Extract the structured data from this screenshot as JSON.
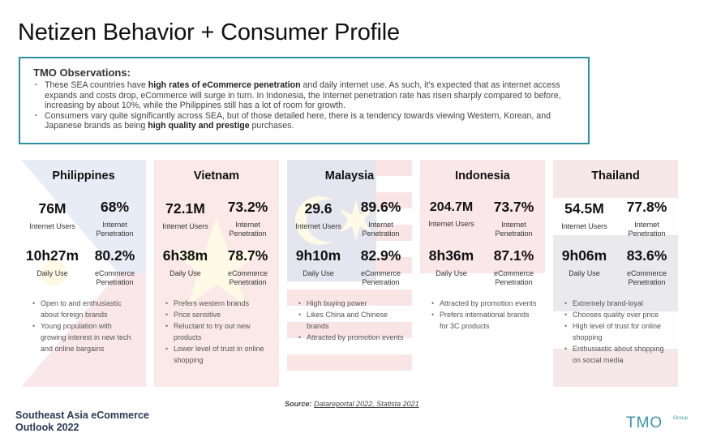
{
  "title": "Netizen Behavior + Consumer Profile",
  "observations": {
    "heading": "TMO Observations:",
    "items": [
      {
        "pre": "These SEA countries have ",
        "bold": "high rates of eCommerce penetration",
        "post": " and daily internet use. As such, it's expected that as internet access expands and costs drop, eCommerce will surge in turn. In Indonesia, the Internet penetration rate has risen sharply compared to before, increasing by about 10%, while the Philippines still has a lot of room for growth."
      },
      {
        "pre": "Consumers vary quite significantly across SEA, but of those detailed here, there is a tendency towards viewing Western, Korean, and Japanese brands as being ",
        "bold": "high quality and prestige",
        "post": " purchases."
      }
    ]
  },
  "countries": [
    {
      "name": "Philippines",
      "internet_users": "76M",
      "internet_users_label": "Internet Users",
      "internet_penetration": "68%",
      "internet_penetration_label": "Internet Penetration",
      "daily_use": "10h27m",
      "daily_use_label": "Daily Use",
      "ecommerce_penetration": "80.2%",
      "ecommerce_penetration_label": "eCommerce Penetration",
      "bullets": [
        "Open to and enthusiastic about foreign brands",
        "Young population with growing interest in new tech and online bargains"
      ]
    },
    {
      "name": "Vietnam",
      "internet_users": "72.1M",
      "internet_users_label": "Internet Users",
      "internet_penetration": "73.2%",
      "internet_penetration_label": "Internet Penetration",
      "daily_use": "6h38m",
      "daily_use_label": "Daily Use",
      "ecommerce_penetration": "78.7%",
      "ecommerce_penetration_label": "eCommerce Penetration",
      "bullets": [
        "Prefers western brands",
        "Price sensitive",
        "Reluctant to try out new products",
        "Lower level of trust in online shopping"
      ]
    },
    {
      "name": "Malaysia",
      "internet_users": "29.6",
      "internet_users_label": "Internet Users",
      "internet_penetration": "89.6%",
      "internet_penetration_label": "Internet Penetration",
      "daily_use": "9h10m",
      "daily_use_label": "Daily Use",
      "ecommerce_penetration": "82.9%",
      "ecommerce_penetration_label": "eCommerce Penetration",
      "bullets": [
        "High buying power",
        "Likes China and Chinese brands",
        "Attracted by promotion events"
      ]
    },
    {
      "name": "Indonesia",
      "internet_users": "204.7M",
      "internet_users_label": "Internet Users",
      "internet_penetration": "73.7%",
      "internet_penetration_label": "Internet Penetration",
      "daily_use": "8h36m",
      "daily_use_label": "Daily Use",
      "ecommerce_penetration": "87.1%",
      "ecommerce_penetration_label": "eCommerce Penetration",
      "bullets": [
        "Attracted by promotion events",
        "Prefers international brands for 3C products"
      ]
    },
    {
      "name": "Thailand",
      "internet_users": "54.5M",
      "internet_users_label": "Internet Users",
      "internet_penetration": "77.8%",
      "internet_penetration_label": "Internet Penetration",
      "daily_use": "9h06m",
      "daily_use_label": "Daily Use",
      "ecommerce_penetration": "83.6%",
      "ecommerce_penetration_label": "eCommerce Penetration",
      "bullets": [
        "Extremely brand-loyal",
        "Chooses quality over price",
        "High level of trust for online shopping",
        "Enthusiastic about shopping on social media"
      ]
    }
  ],
  "source": {
    "label": "Source:",
    "text": "Datareportal 2022, Statista 2021"
  },
  "footer": {
    "line1": "Southeast Asia eCommerce",
    "line2": "Outlook 2022"
  },
  "logo": {
    "text": "TMO",
    "suffix": "Group",
    "icon": "tmo-group-logo"
  },
  "colors": {
    "accent": "#2e8fa1",
    "footer": "#2b3a55",
    "logo": "#3a95a8"
  }
}
